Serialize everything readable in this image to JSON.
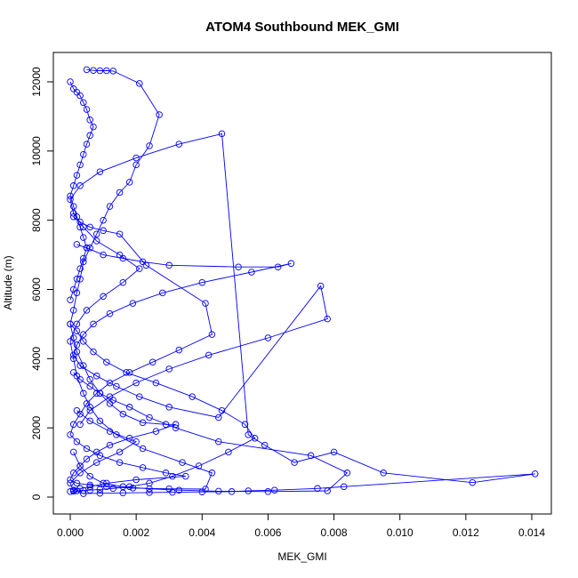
{
  "chart_data": {
    "type": "line",
    "title": "ATOM4 Southbound MEK_GMI",
    "xlabel": "MEK_GMI",
    "ylabel": "Altitude (m)",
    "xlim": [
      0.0,
      0.0145
    ],
    "ylim": [
      0,
      12600
    ],
    "x_ticks": [
      "0.000",
      "0.002",
      "0.004",
      "0.006",
      "0.008",
      "0.010",
      "0.012",
      "0.014"
    ],
    "x_tick_values": [
      0,
      0.002,
      0.004,
      0.006,
      0.008,
      0.01,
      0.012,
      0.014
    ],
    "y_ticks": [
      "0",
      "2000",
      "4000",
      "6000",
      "8000",
      "10000",
      "12000"
    ],
    "y_tick_values": [
      0,
      2000,
      4000,
      6000,
      8000,
      10000,
      12000
    ],
    "marker": "open-circle",
    "color": "#0000ff",
    "grid": false,
    "series": [
      {
        "x": [
          0.0005,
          0.0007,
          0.0009,
          0.0011,
          0.0013,
          0.0021,
          0.0027,
          0.0024,
          0.002,
          0.0018,
          0.0015,
          0.0012,
          0.001,
          0.0008,
          0.0006,
          0.0004,
          0.0003,
          0.0002,
          0.0001,
          0.0,
          0.0001,
          0.0002,
          0.0004,
          0.0006,
          0.0009,
          0.0012,
          0.0016,
          0.0022,
          0.0029,
          0.0032,
          0.0026,
          0.0018,
          0.0012,
          0.0008,
          0.0005,
          0.0003,
          0.0001,
          0.0,
          0.0002,
          0.0006,
          0.0011,
          0.0019,
          0.003,
          0.0041,
          0.0043,
          0.0034,
          0.0022,
          0.0014,
          0.0009,
          0.0006,
          0.0004,
          0.0002,
          0.0001,
          0.0,
          0.0002,
          0.0005,
          0.001,
          0.0016,
          0.0021,
          0.0015,
          0.0008,
          0.0004,
          0.0001,
          0.0,
          0.0003,
          0.0009,
          0.002,
          0.0033,
          0.0046,
          0.0054,
          0.0059,
          0.0068,
          0.008,
          0.0095,
          0.0122,
          0.0141,
          0.0083,
          0.0075,
          0.0062,
          0.0054,
          0.0049,
          0.004,
          0.0031,
          0.0024,
          0.0016,
          0.0009,
          0.0004,
          0.0001,
          0.0,
          0.0003,
          0.0008,
          0.0015,
          0.002,
          0.0012,
          0.0006,
          0.0002
        ],
        "y": [
          12350,
          12330,
          12320,
          12320,
          12310,
          11950,
          11050,
          10150,
          9600,
          9100,
          8800,
          8400,
          8000,
          7600,
          7200,
          6800,
          6300,
          5900,
          5400,
          5000,
          4600,
          4200,
          3800,
          3400,
          3000,
          2700,
          2400,
          2150,
          2100,
          2100,
          1900,
          1700,
          1500,
          1300,
          1100,
          900,
          700,
          500,
          400,
          350,
          300,
          260,
          240,
          230,
          700,
          1000,
          1400,
          1800,
          2200,
          2600,
          3000,
          3500,
          4000,
          4500,
          5000,
          5400,
          5800,
          6200,
          6600,
          7000,
          7400,
          7800,
          8200,
          8600,
          9000,
          9400,
          9800,
          10200,
          10500,
          1800,
          1500,
          1000,
          1300,
          700,
          420,
          670,
          300,
          250,
          200,
          180,
          160,
          150,
          140,
          130,
          120,
          110,
          100,
          190,
          400,
          700,
          1000,
          1300,
          1600,
          1900,
          2200,
          2500
        ]
      },
      {
        "x": [
          0.0001,
          0.0003,
          0.0006,
          0.001,
          0.0015,
          0.0023,
          0.0041,
          0.0043,
          0.0033,
          0.0025,
          0.0018,
          0.0012,
          0.0008,
          0.0005,
          0.0003,
          0.0001,
          0.0,
          0.0002,
          0.0005,
          0.0009,
          0.0015,
          0.0022,
          0.0029,
          0.0035,
          0.002,
          0.0011,
          0.0006,
          0.0003,
          0.0001
        ],
        "y": [
          8100,
          7950,
          7800,
          7700,
          7600,
          6700,
          5600,
          4700,
          4250,
          3900,
          3600,
          3300,
          3000,
          2700,
          2400,
          2100,
          1800,
          1600,
          1400,
          1200,
          1000,
          850,
          700,
          600,
          500,
          400,
          300,
          250,
          200
        ]
      },
      {
        "x": [
          0.0002,
          0.0005,
          0.001,
          0.0016,
          0.0022,
          0.003,
          0.0051,
          0.0063,
          0.0067,
          0.0055,
          0.004,
          0.0028,
          0.0019,
          0.0012,
          0.0007,
          0.0004,
          0.0002,
          0.0001,
          0.0003,
          0.0008,
          0.0014,
          0.0021,
          0.003,
          0.0045,
          0.0076,
          0.0078,
          0.006,
          0.0042,
          0.003,
          0.002,
          0.0012,
          0.0006,
          0.0003
        ],
        "y": [
          7300,
          7200,
          7000,
          6900,
          6800,
          6700,
          6650,
          6650,
          6750,
          6500,
          6200,
          5900,
          5600,
          5300,
          5000,
          4700,
          4400,
          4100,
          3800,
          3500,
          3200,
          2900,
          2600,
          2300,
          6100,
          5150,
          4600,
          4100,
          3700,
          3300,
          2900,
          2500,
          2100
        ]
      },
      {
        "x": [
          0.0,
          0.0001,
          0.0002,
          0.0003,
          0.0004,
          0.0005,
          0.0006,
          0.0007,
          0.0006,
          0.0005,
          0.0004,
          0.0003,
          0.0002,
          0.0001,
          0.0,
          0.0001,
          0.0002,
          0.0003,
          0.0004,
          0.0005,
          0.0004,
          0.0003,
          0.0002,
          0.0001,
          0.0
        ],
        "y": [
          12000,
          11800,
          11700,
          11600,
          11400,
          11200,
          10900,
          10700,
          10450,
          10200,
          9900,
          9600,
          9300,
          9000,
          8700,
          8400,
          8100,
          7800,
          7500,
          7200,
          6900,
          6600,
          6300,
          6000,
          5700
        ]
      },
      {
        "x": [
          0.0,
          0.0002,
          0.0004,
          0.0007,
          0.0011,
          0.0017,
          0.0026,
          0.0037,
          0.0046,
          0.0053,
          0.0056,
          0.0048,
          0.0039,
          0.0031,
          0.0024,
          0.0018,
          0.0013,
          0.0009,
          0.0006,
          0.0004,
          0.0002,
          0.0001,
          0.0
        ],
        "y": [
          5000,
          4800,
          4500,
          4200,
          3900,
          3600,
          3300,
          2900,
          2500,
          2100,
          1700,
          1300,
          900,
          600,
          400,
          300,
          250,
          220,
          200,
          190,
          180,
          170,
          160
        ]
      },
      {
        "x": [
          0.0001,
          0.0003,
          0.0006,
          0.0009,
          0.0013,
          0.0018,
          0.0024,
          0.0032,
          0.0045,
          0.0073,
          0.0084,
          0.0078,
          0.006,
          0.0045,
          0.0033,
          0.0024,
          0.0016,
          0.001,
          0.0006,
          0.0003,
          0.0001
        ],
        "y": [
          3600,
          3400,
          3200,
          3000,
          2800,
          2600,
          2300,
          2000,
          1600,
          1200,
          700,
          180,
          160,
          170,
          200,
          240,
          300,
          400,
          600,
          900,
          1300
        ]
      }
    ]
  }
}
